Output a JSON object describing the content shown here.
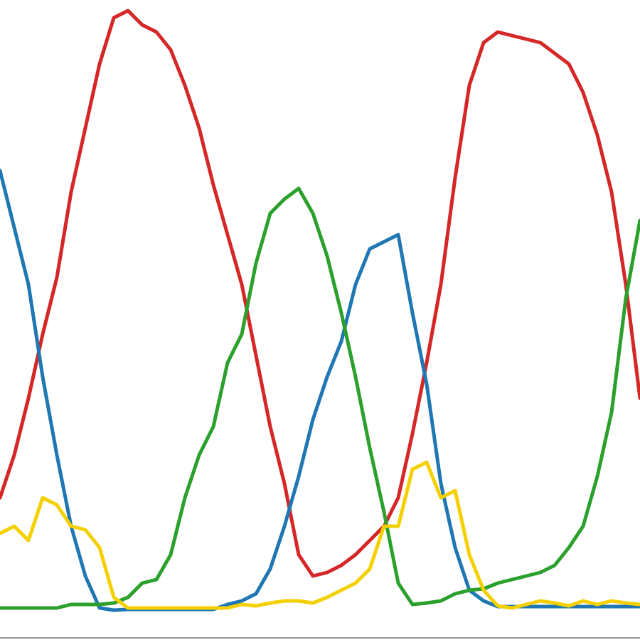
{
  "chart_data": {
    "type": "line",
    "x": [
      0,
      20,
      40,
      60,
      80,
      100,
      120,
      140,
      160,
      180,
      200,
      220,
      240,
      260,
      280,
      300,
      320,
      340,
      360,
      380,
      400,
      420,
      440,
      460,
      480,
      500,
      520,
      540,
      560,
      580,
      600,
      620,
      640,
      660,
      680,
      700,
      720,
      740,
      760,
      780,
      800,
      820,
      840,
      860,
      880,
      900
    ],
    "xlim": [
      0,
      900
    ],
    "ylim": [
      -45,
      855
    ],
    "series": [
      {
        "color": "#d62728",
        "values": [
          155,
          215,
          295,
          385,
          465,
          585,
          675,
          765,
          830,
          840,
          820,
          810,
          785,
          735,
          675,
          595,
          525,
          455,
          355,
          255,
          175,
          75,
          45,
          50,
          60,
          75,
          95,
          115,
          155,
          245,
          345,
          455,
          605,
          735,
          795,
          810,
          805,
          800,
          795,
          780,
          765,
          725,
          665,
          585,
          455,
          295
        ]
      },
      {
        "color": "#1f77b4",
        "values": [
          615,
          535,
          455,
          325,
          215,
          115,
          45,
          0,
          -3,
          -2,
          -2,
          -2,
          -2,
          -2,
          -2,
          -2,
          5,
          10,
          20,
          55,
          115,
          185,
          265,
          325,
          375,
          455,
          505,
          515,
          525,
          415,
          315,
          175,
          85,
          25,
          10,
          2,
          2,
          2,
          2,
          2,
          2,
          2,
          2,
          2,
          2,
          2
        ]
      },
      {
        "color": "#2ca02c",
        "values": [
          0,
          0,
          0,
          0,
          0,
          5,
          5,
          5,
          7,
          15,
          35,
          40,
          75,
          155,
          215,
          255,
          345,
          385,
          485,
          555,
          575,
          590,
          555,
          495,
          415,
          325,
          225,
          135,
          35,
          5,
          7,
          10,
          20,
          25,
          27,
          35,
          40,
          45,
          50,
          60,
          85,
          115,
          185,
          275,
          435,
          545
        ]
      },
      {
        "color": "#f5d000",
        "values": [
          105,
          115,
          95,
          155,
          145,
          115,
          110,
          85,
          15,
          0,
          0,
          0,
          0,
          0,
          0,
          0,
          0,
          5,
          3,
          7,
          10,
          10,
          7,
          15,
          25,
          35,
          55,
          115,
          115,
          195,
          205,
          155,
          165,
          75,
          25,
          3,
          0,
          5,
          10,
          7,
          3,
          10,
          5,
          10,
          7,
          5
        ]
      }
    ]
  }
}
